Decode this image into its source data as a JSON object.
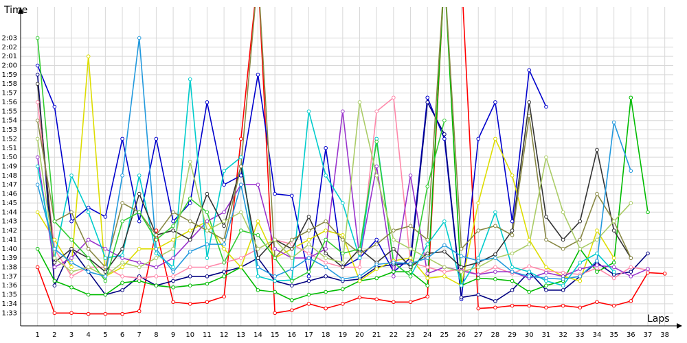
{
  "chart_data": {
    "type": "line",
    "y_label": "Time",
    "x_label": "Laps",
    "x": [
      1,
      2,
      3,
      4,
      5,
      6,
      7,
      8,
      9,
      10,
      11,
      12,
      13,
      14,
      15,
      16,
      17,
      18,
      19,
      20,
      21,
      22,
      23,
      24,
      25,
      26,
      27,
      28,
      29,
      30,
      31,
      32,
      33,
      34,
      35,
      36,
      37,
      38
    ],
    "xlim": [
      0,
      38.5
    ],
    "xticks": [
      1,
      2,
      3,
      4,
      5,
      6,
      7,
      8,
      9,
      10,
      11,
      12,
      13,
      14,
      15,
      16,
      17,
      18,
      19,
      20,
      21,
      22,
      23,
      24,
      25,
      26,
      27,
      28,
      29,
      30,
      31,
      32,
      33,
      34,
      35,
      36,
      37,
      38
    ],
    "ylim": [
      91.6,
      126.4
    ],
    "yticks": [
      {
        "value": 93,
        "label": "1:33"
      },
      {
        "value": 94,
        "label": "1:34"
      },
      {
        "value": 95,
        "label": "1:35"
      },
      {
        "value": 96,
        "label": "1:36"
      },
      {
        "value": 97,
        "label": "1:37"
      },
      {
        "value": 98,
        "label": "1:38"
      },
      {
        "value": 99,
        "label": "1:39"
      },
      {
        "value": 100,
        "label": "1:40"
      },
      {
        "value": 101,
        "label": "1:41"
      },
      {
        "value": 102,
        "label": "1:42"
      },
      {
        "value": 103,
        "label": "1:43"
      },
      {
        "value": 104,
        "label": "1:44"
      },
      {
        "value": 105,
        "label": "1:45"
      },
      {
        "value": 106,
        "label": "1:46"
      },
      {
        "value": 107,
        "label": "1:47"
      },
      {
        "value": 108,
        "label": "1:48"
      },
      {
        "value": 109,
        "label": "1:49"
      },
      {
        "value": 110,
        "label": "1:50"
      },
      {
        "value": 111,
        "label": "1:51"
      },
      {
        "value": 112,
        "label": "1:52"
      },
      {
        "value": 113,
        "label": "1:53"
      },
      {
        "value": 114,
        "label": "1:54"
      },
      {
        "value": 115,
        "label": "1:55"
      },
      {
        "value": 116,
        "label": "1:56"
      },
      {
        "value": 117,
        "label": "1:57"
      },
      {
        "value": 118,
        "label": "1:58"
      },
      {
        "value": 119,
        "label": "1:59"
      },
      {
        "value": 120,
        "label": "2:00"
      },
      {
        "value": 121,
        "label": "2:01"
      },
      {
        "value": 122,
        "label": "2:02"
      },
      {
        "value": 123,
        "label": "2:03"
      }
    ],
    "grid": true,
    "series": [
      {
        "color": "#ff0000",
        "values": [
          98,
          93,
          93,
          92.9,
          92.9,
          92.9,
          93.2,
          102,
          94.2,
          94,
          94.2,
          94.8,
          112,
          130,
          93,
          93.3,
          94,
          93.5,
          94,
          94.7,
          94.5,
          94.2,
          94.2,
          94.8,
          130,
          130,
          93.5,
          93.6,
          93.8,
          93.8,
          93.6,
          93.8,
          93.6,
          94.2,
          93.8,
          94.3,
          97.4,
          97.3
        ]
      },
      {
        "color": "#0000cc",
        "values": [
          120,
          115.5,
          103,
          104.5,
          103.5,
          112,
          103,
          112,
          103,
          105,
          116,
          107,
          108,
          119,
          106,
          105.8,
          97,
          111,
          98,
          99,
          101,
          97.5,
          99,
          116.5,
          112,
          94.5,
          112,
          116,
          103,
          119.5,
          115.5,
          null,
          null,
          null,
          null,
          null,
          null,
          null
        ]
      },
      {
        "color": "#000080",
        "values": [
          119,
          96,
          100,
          97.5,
          95,
          95.5,
          97,
          96,
          96.5,
          97,
          97,
          97.5,
          98,
          99,
          96.5,
          96,
          96.5,
          97,
          96.5,
          96.7,
          98,
          98.3,
          98.4,
          116,
          112.5,
          94.7,
          95,
          94.3,
          95.5,
          97.5,
          95.5,
          95.5,
          97,
          98.5,
          97.2,
          97.5,
          99.5,
          null
        ]
      },
      {
        "color": "#00bb00",
        "values": [
          100,
          96.5,
          95.8,
          95,
          95,
          96.3,
          96.5,
          96,
          95.8,
          96,
          96.2,
          97,
          98,
          95.5,
          95.3,
          94.4,
          95,
          95.3,
          95.6,
          96.5,
          96.8,
          97.5,
          97.5,
          96,
          130,
          96,
          96.8,
          96.7,
          96.5,
          95.3,
          96,
          96.5,
          100,
          97.5,
          98.5,
          116.5,
          104,
          null
        ]
      },
      {
        "color": "#dddd00",
        "values": [
          104,
          101,
          98,
          121,
          97,
          98,
          100,
          100,
          101,
          102,
          103,
          100,
          98,
          103,
          99,
          100,
          101,
          102,
          101.5,
          96.5,
          97.8,
          98.7,
          99,
          96.8,
          97,
          96,
          105,
          112,
          108,
          101,
          98,
          97,
          96.5,
          102,
          99,
          null,
          null,
          null
        ]
      },
      {
        "color": "#ff88aa",
        "values": [
          116,
          100,
          97,
          98,
          98,
          97,
          96.8,
          97,
          97,
          98,
          98,
          98.5,
          99,
          100,
          101,
          100.5,
          99.5,
          98.5,
          98,
          98,
          115,
          116.5,
          98.5,
          98,
          97.5,
          97.8,
          97.2,
          98,
          97.3,
          98.1,
          97.6,
          97.4,
          97.2,
          97.9,
          96.8,
          98,
          97.7,
          null
        ]
      },
      {
        "color": "#9933cc",
        "values": [
          110,
          98,
          99,
          101,
          100,
          99,
          98.5,
          98,
          99,
          101,
          103,
          104,
          107,
          107,
          100,
          99,
          99,
          100,
          115,
          99,
          109,
          97,
          108,
          97.3,
          98,
          97.6,
          97.2,
          97.5,
          97.5,
          96.8,
          97.4,
          97,
          97.8,
          98.2,
          98,
          97,
          97.8,
          null
        ]
      },
      {
        "color": "#00cccc",
        "values": [
          109,
          99,
          108,
          104,
          99,
          99.3,
          108,
          99.5,
          98,
          118.5,
          99,
          108.5,
          110,
          97,
          96.5,
          96.6,
          115,
          108,
          105,
          99,
          112,
          98.5,
          97,
          100.5,
          103,
          96,
          99,
          104,
          98,
          97.5,
          96.5,
          96,
          98.5,
          99.5,
          97.5,
          null,
          null,
          null
        ]
      },
      {
        "color": "#333333",
        "values": [
          118,
          98.5,
          100,
          99,
          97.5,
          100,
          106,
          101.5,
          102,
          101,
          106,
          102.5,
          109,
          99,
          101,
          100,
          103.5,
          99.5,
          98,
          100,
          98.5,
          100,
          98,
          99.5,
          99.7,
          98,
          98.5,
          99.4,
          102,
          116,
          103.5,
          101,
          103,
          110.8,
          102,
          99,
          null,
          null
        ]
      },
      {
        "color": "#888844",
        "values": [
          114,
          103,
          104,
          100,
          98,
          105,
          104,
          101.5,
          104,
          103,
          102,
          101,
          109,
          130,
          99,
          101,
          102,
          103,
          101,
          99.5,
          100.5,
          102,
          102.5,
          101,
          130,
          100,
          102,
          102.5,
          101.5,
          114.5,
          101,
          100,
          101,
          106,
          103,
          99,
          null,
          null
        ]
      },
      {
        "color": "#33cc33",
        "values": [
          123,
          103,
          101,
          99,
          96.5,
          103,
          104,
          101,
          102.5,
          105.5,
          104,
          98.5,
          102,
          101.5,
          99,
          96.5,
          97.5,
          101,
          99.5,
          100,
          111.7,
          98.5,
          97,
          106.8,
          114,
          null,
          null,
          null,
          null,
          null,
          null,
          null,
          null,
          null,
          null,
          null,
          null,
          null
        ]
      },
      {
        "color": "#aacc66",
        "values": [
          112,
          99,
          97.5,
          98,
          97,
          98.5,
          98,
          99,
          100,
          109.5,
          102,
          103,
          104,
          100,
          101,
          99,
          100.5,
          99,
          98.5,
          116,
          108,
          101,
          100,
          99,
          98,
          97.5,
          98,
          99,
          99.5,
          100.5,
          110,
          104,
          100,
          101,
          103,
          105,
          null,
          null
        ]
      },
      {
        "color": "#2299dd",
        "values": [
          107,
          100,
          98.5,
          97.5,
          97,
          108,
          123,
          100,
          97.5,
          99.7,
          100.5,
          100.5,
          107,
          98,
          97,
          97.8,
          99,
          98,
          96.7,
          97,
          98.3,
          98.5,
          98.4,
          99,
          100.4,
          99.2,
          98.7,
          99,
          97.5,
          97,
          96.8,
          96.7,
          97,
          98.7,
          113.8,
          108.5,
          null,
          null
        ]
      }
    ]
  }
}
